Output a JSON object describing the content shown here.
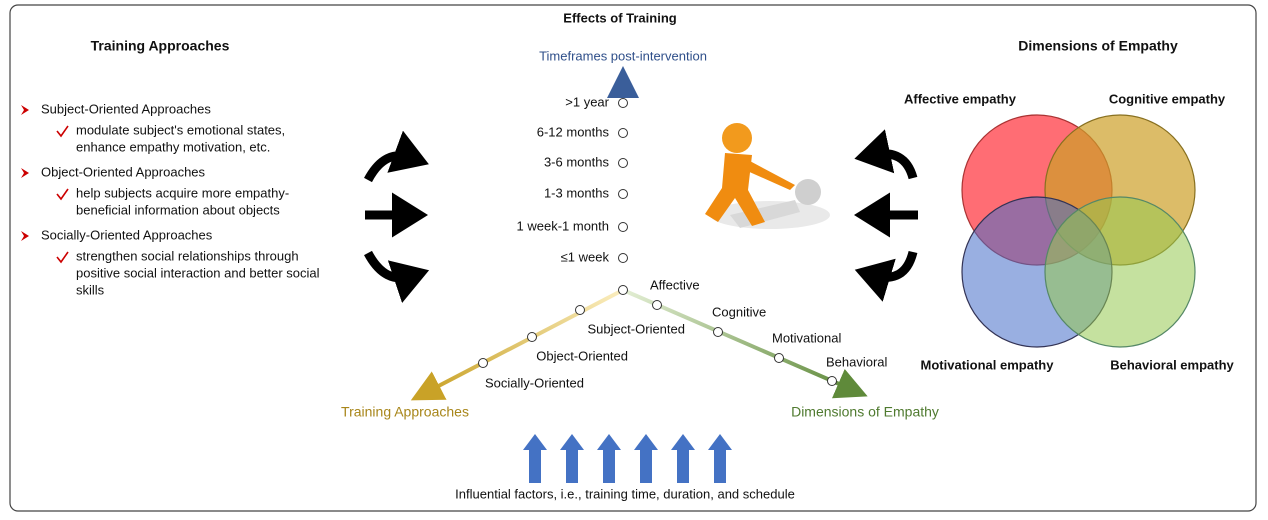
{
  "title": "Effects of Training",
  "left": {
    "heading": "Training Approaches",
    "items": [
      {
        "label": "Subject-Oriented Approaches",
        "detail": [
          "modulate subject's emotional states,",
          "enhance empathy motivation, etc."
        ]
      },
      {
        "label": "Object-Oriented Approaches",
        "detail": [
          "help subjects acquire more empathy-",
          "beneficial information about objects"
        ]
      },
      {
        "label": "Socially-Oriented Approaches",
        "detail": [
          "strengthen social relationships through",
          "positive social interaction and better social",
          "skills"
        ]
      }
    ]
  },
  "center": {
    "time_axis": {
      "label": "Timeframes post-intervention",
      "ticks": [
        ">1 year",
        "6-12 months",
        "3-6 months",
        "1-3 months",
        "1 week-1 month",
        "≤1 week"
      ]
    },
    "approach_axis": {
      "label": "Training Approaches",
      "ticks": [
        "Subject-Oriented",
        "Object-Oriented",
        "Socially-Oriented"
      ]
    },
    "empathy_axis": {
      "label": "Dimensions of Empathy",
      "ticks": [
        "Affective",
        "Cognitive",
        "Motivational",
        "Behavioral"
      ]
    },
    "footer": "Influential factors, i.e., training time, duration, and schedule"
  },
  "right": {
    "heading": "Dimensions of Empathy",
    "circles": [
      "Affective empathy",
      "Cognitive empathy",
      "Motivational empathy",
      "Behavioral empathy"
    ]
  }
}
